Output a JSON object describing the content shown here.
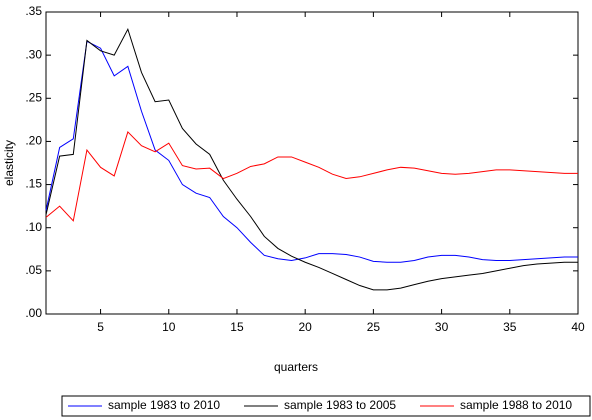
{
  "chart_data": {
    "type": "line",
    "x_label": "quarters",
    "y_label": "elasticity",
    "x": [
      1,
      2,
      3,
      4,
      5,
      6,
      7,
      8,
      9,
      10,
      11,
      12,
      13,
      14,
      15,
      16,
      17,
      18,
      19,
      20,
      21,
      22,
      23,
      24,
      25,
      26,
      27,
      28,
      29,
      30,
      31,
      32,
      33,
      34,
      35,
      36,
      37,
      38,
      39,
      40
    ],
    "series": [
      {
        "name": "sample 1983 to 2010",
        "color": "#0000ff",
        "values": [
          0.12,
          0.193,
          0.203,
          0.316,
          0.308,
          0.276,
          0.287,
          0.235,
          0.19,
          0.178,
          0.15,
          0.14,
          0.135,
          0.113,
          0.1,
          0.083,
          0.068,
          0.064,
          0.062,
          0.065,
          0.07,
          0.07,
          0.069,
          0.066,
          0.061,
          0.06,
          0.06,
          0.062,
          0.066,
          0.068,
          0.068,
          0.066,
          0.063,
          0.062,
          0.062,
          0.063,
          0.064,
          0.065,
          0.066,
          0.066
        ]
      },
      {
        "name": "sample 1983 to 2005",
        "color": "#000000",
        "values": [
          0.115,
          0.183,
          0.185,
          0.317,
          0.305,
          0.3,
          0.33,
          0.28,
          0.246,
          0.248,
          0.215,
          0.197,
          0.185,
          0.155,
          0.133,
          0.113,
          0.09,
          0.076,
          0.067,
          0.06,
          0.054,
          0.047,
          0.04,
          0.033,
          0.028,
          0.028,
          0.03,
          0.034,
          0.038,
          0.041,
          0.043,
          0.045,
          0.047,
          0.05,
          0.053,
          0.056,
          0.058,
          0.059,
          0.06,
          0.06
        ]
      },
      {
        "name": "sample 1988 to 2010",
        "color": "#ff0000",
        "values": [
          0.112,
          0.125,
          0.108,
          0.19,
          0.17,
          0.16,
          0.211,
          0.195,
          0.188,
          0.198,
          0.172,
          0.168,
          0.169,
          0.157,
          0.163,
          0.171,
          0.174,
          0.182,
          0.182,
          0.176,
          0.17,
          0.162,
          0.157,
          0.159,
          0.163,
          0.167,
          0.17,
          0.169,
          0.166,
          0.163,
          0.162,
          0.163,
          0.165,
          0.167,
          0.167,
          0.166,
          0.165,
          0.164,
          0.163,
          0.163
        ]
      }
    ],
    "xlim": [
      1,
      40
    ],
    "xticks": [
      5,
      10,
      15,
      20,
      25,
      30,
      35,
      40
    ],
    "ylim": [
      0,
      0.35
    ],
    "yticks": [
      {
        "value": 0,
        "label": ".00"
      },
      {
        "value": 0.05,
        "label": ".05"
      },
      {
        "value": 0.1,
        "label": ".10"
      },
      {
        "value": 0.15,
        "label": ".15"
      },
      {
        "value": 0.2,
        "label": ".20"
      },
      {
        "value": 0.25,
        "label": ".25"
      },
      {
        "value": 0.3,
        "label": ".30"
      },
      {
        "value": 0.35,
        "label": ".35"
      }
    ],
    "legend": "bottom"
  }
}
